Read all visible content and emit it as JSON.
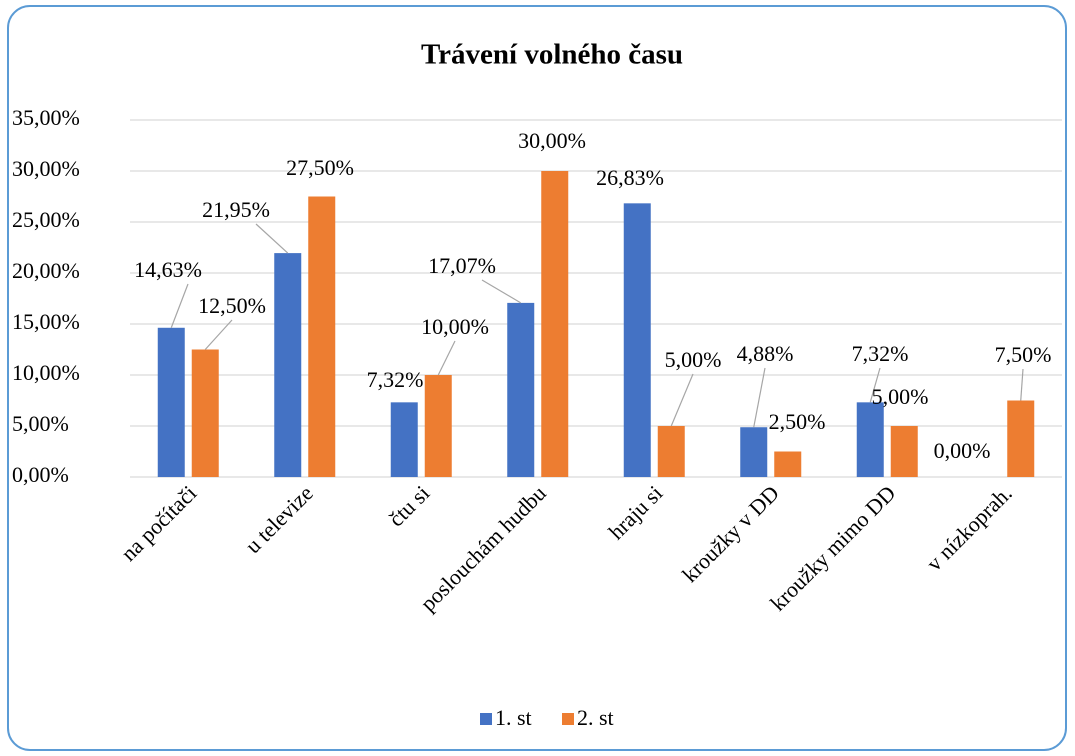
{
  "chart_data": {
    "type": "bar",
    "title": "Trávení volného času",
    "categories": [
      "na počítači",
      "u televize",
      "čtu si",
      "poslouchám hudbu",
      "hraju si",
      "kroužky v DD",
      "kroužky mimo DD",
      "v nízkoprah."
    ],
    "series": [
      {
        "name": "1. st",
        "color": "#4472c4",
        "values": [
          14.63,
          21.95,
          7.32,
          17.07,
          26.83,
          4.88,
          7.32,
          0
        ],
        "value_labels": [
          "14,63%",
          "21,95%",
          "7,32%",
          "17,07%",
          "26,83%",
          "4,88%",
          "7,32%",
          "0,00%"
        ]
      },
      {
        "name": "2. st",
        "color": "#ed7d31",
        "values": [
          12.5,
          27.5,
          10,
          30,
          5,
          2.5,
          5,
          7.5
        ],
        "value_labels": [
          "12,50%",
          "27,50%",
          "10,00%",
          "30,00%",
          "5,00%",
          "2,50%",
          "5,00%",
          "7,50%"
        ]
      }
    ],
    "ylim": [
      0,
      35
    ],
    "yticks": [
      {
        "value": 0,
        "label": "0,00%"
      },
      {
        "value": 5,
        "label": "5,00%"
      },
      {
        "value": 10,
        "label": "10,00%"
      },
      {
        "value": 15,
        "label": "15,00%"
      },
      {
        "value": 20,
        "label": "20,00%"
      },
      {
        "value": 25,
        "label": "25,00%"
      },
      {
        "value": 30,
        "label": "30,00%"
      },
      {
        "value": 35,
        "label": "35,00%"
      }
    ],
    "grid": true,
    "legend": "bottom"
  }
}
